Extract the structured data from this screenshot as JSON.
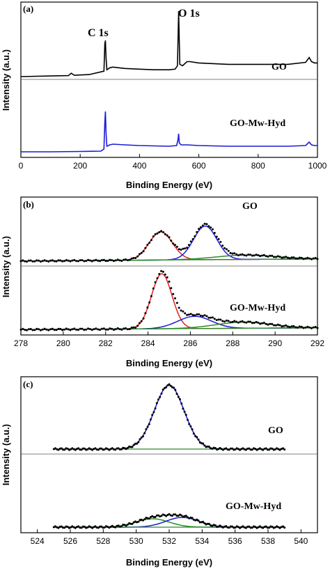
{
  "chart_data": [
    {
      "type": "line",
      "panel_label": "(a)",
      "xlabel": "Binding Energy (eV)",
      "ylabel": "Intensity (a.u.)",
      "xlim": [
        0,
        1000
      ],
      "xticks": [
        0,
        200,
        400,
        600,
        800,
        1000
      ],
      "stacked": true,
      "annotations": [
        {
          "text": "C 1s",
          "x": 284
        },
        {
          "text": "O 1s",
          "x": 532
        }
      ],
      "series": [
        {
          "name": "GO",
          "color": "#000000",
          "x": [
            0,
            100,
            160,
            170,
            180,
            230,
            280,
            283,
            285,
            287,
            290,
            300,
            310,
            350,
            400,
            450,
            500,
            520,
            528,
            530,
            532,
            534,
            536,
            545,
            560,
            570,
            600,
            700,
            800,
            900,
            960,
            972,
            980,
            990,
            1000
          ],
          "y": [
            0.02,
            0.03,
            0.035,
            0.07,
            0.04,
            0.05,
            0.1,
            0.5,
            0.55,
            0.3,
            0.12,
            0.15,
            0.16,
            0.14,
            0.13,
            0.12,
            0.12,
            0.13,
            0.18,
            0.6,
            0.98,
            0.55,
            0.2,
            0.18,
            0.24,
            0.24,
            0.22,
            0.2,
            0.2,
            0.2,
            0.23,
            0.3,
            0.24,
            0.22,
            0.22
          ]
        },
        {
          "name": "GO-Mw-Hyd",
          "color": "#1a1ad8",
          "x": [
            0,
            100,
            200,
            270,
            280,
            283,
            285,
            287,
            290,
            300,
            310,
            350,
            400,
            500,
            525,
            530,
            532,
            534,
            540,
            560,
            600,
            700,
            800,
            900,
            960,
            972,
            980,
            990,
            1000
          ],
          "y": [
            0.02,
            0.02,
            0.025,
            0.03,
            0.06,
            0.45,
            0.6,
            0.3,
            0.1,
            0.12,
            0.13,
            0.12,
            0.11,
            0.1,
            0.11,
            0.2,
            0.28,
            0.15,
            0.12,
            0.12,
            0.11,
            0.1,
            0.1,
            0.1,
            0.11,
            0.16,
            0.12,
            0.11,
            0.11
          ]
        }
      ]
    },
    {
      "type": "line",
      "panel_label": "(b)",
      "xlabel": "Binding Energy (eV)",
      "ylabel": "Intensity (a.u.)",
      "xlim": [
        278,
        292
      ],
      "xticks": [
        278,
        280,
        282,
        284,
        286,
        288,
        290,
        292
      ],
      "stacked": true,
      "subpanels": [
        {
          "name": "GO",
          "peaks": [
            {
              "center": 284.6,
              "amp": 0.52,
              "sigma": 0.55,
              "color": "#e02020"
            },
            {
              "center": 286.7,
              "amp": 0.62,
              "sigma": 0.55,
              "color": "#1a1ad8"
            },
            {
              "center": 288.6,
              "amp": 0.08,
              "sigma": 1.4,
              "color": "#2a8a2a"
            }
          ],
          "baseline": [
            {
              "x": 278,
              "y": 0.04
            },
            {
              "x": 292,
              "y": 0.08
            }
          ]
        },
        {
          "name": "GO-Mw-Hyd",
          "peaks": [
            {
              "center": 284.65,
              "amp": 0.9,
              "sigma": 0.48,
              "color": "#e02020"
            },
            {
              "center": 286.2,
              "amp": 0.2,
              "sigma": 0.8,
              "color": "#1a1ad8"
            },
            {
              "center": 288.5,
              "amp": 0.1,
              "sigma": 1.3,
              "color": "#2a8a2a"
            }
          ],
          "baseline": [
            {
              "x": 278,
              "y": 0.03
            },
            {
              "x": 292,
              "y": 0.06
            }
          ]
        }
      ]
    },
    {
      "type": "line",
      "panel_label": "(c)",
      "xlabel": "Binding Energy (eV)",
      "ylabel": "Intensity (a.u.)",
      "xlim": [
        523,
        541
      ],
      "xticks": [
        524,
        526,
        528,
        530,
        532,
        534,
        536,
        538,
        540
      ],
      "stacked": true,
      "subpanels": [
        {
          "name": "GO",
          "peaks": [
            {
              "center": 532.0,
              "amp": 0.9,
              "sigma": 0.9,
              "color": "#1a1ad8"
            }
          ],
          "baseline": [
            {
              "x": 525,
              "y": 0.05
            },
            {
              "x": 539,
              "y": 0.05
            }
          ]
        },
        {
          "name": "GO-Mw-Hyd",
          "peaks": [
            {
              "center": 531.0,
              "amp": 0.12,
              "sigma": 1.0,
              "color": "#2a8a2a"
            },
            {
              "center": 532.8,
              "amp": 0.14,
              "sigma": 1.0,
              "color": "#1a1ad8"
            }
          ],
          "baseline": [
            {
              "x": 525,
              "y": 0.03
            },
            {
              "x": 539,
              "y": 0.03
            }
          ]
        }
      ]
    }
  ]
}
